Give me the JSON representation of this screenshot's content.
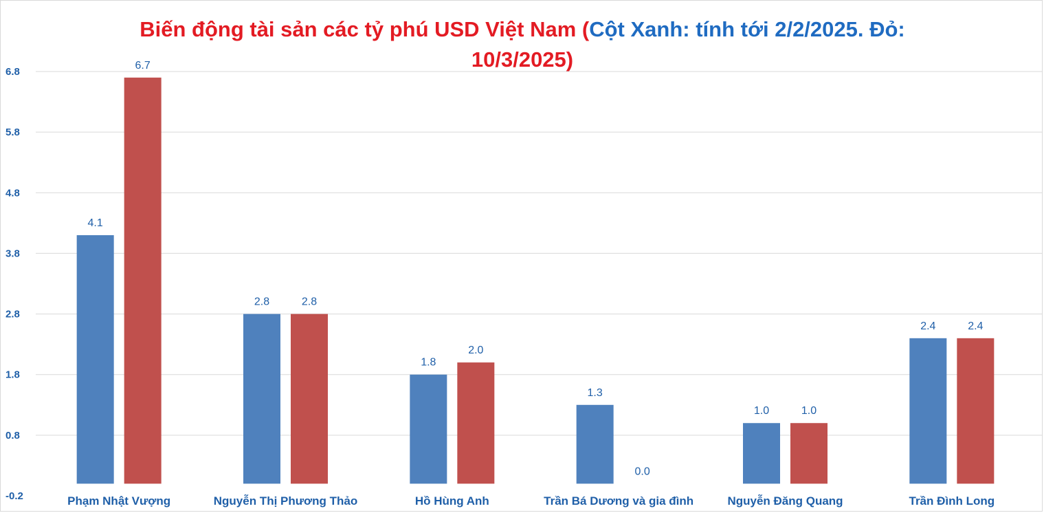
{
  "chart_data": {
    "type": "bar",
    "title_parts": {
      "part1": "Biến động tài sản các tỷ phú USD Việt Nam (",
      "part2": "Cột Xanh: tính tới 2/2/2025. Đỏ:",
      "part3": "10/3/2025)"
    },
    "xlabel": "",
    "ylabel": "",
    "categories": [
      "Phạm Nhật Vượng",
      "Nguyễn Thị Phương Thảo",
      "Hồ Hùng Anh",
      "Trần Bá Dương và gia đình",
      "Nguyễn Đăng Quang",
      "Trần Đình Long"
    ],
    "series": [
      {
        "color": "#4f81bd",
        "values": [
          4.1,
          2.8,
          1.8,
          1.3,
          1.0,
          2.4
        ],
        "labels": [
          "4.1",
          "2.8",
          "1.8",
          "1.3",
          "1.0",
          "2.4"
        ]
      },
      {
        "color": "#c0504d",
        "values": [
          6.7,
          2.8,
          2.0,
          0.0,
          1.0,
          2.4
        ],
        "labels": [
          "6.7",
          "2.8",
          "2.0",
          "0.0",
          "1.0",
          "2.4"
        ]
      }
    ],
    "ylim": [
      -0.2,
      6.8
    ],
    "yticks": [
      "6.8",
      "5.8",
      "4.8",
      "3.8",
      "2.8",
      "1.8",
      "0.8",
      "-0.2"
    ],
    "ytick_values": [
      6.8,
      5.8,
      4.8,
      3.8,
      2.8,
      1.8,
      0.8,
      -0.2
    ],
    "grid": true,
    "legend": "none",
    "colors": {
      "title_red": "#e31b23",
      "title_blue": "#1f6bc1",
      "axis_text": "#1f5fa8",
      "gridline": "#d9d9d9"
    }
  }
}
